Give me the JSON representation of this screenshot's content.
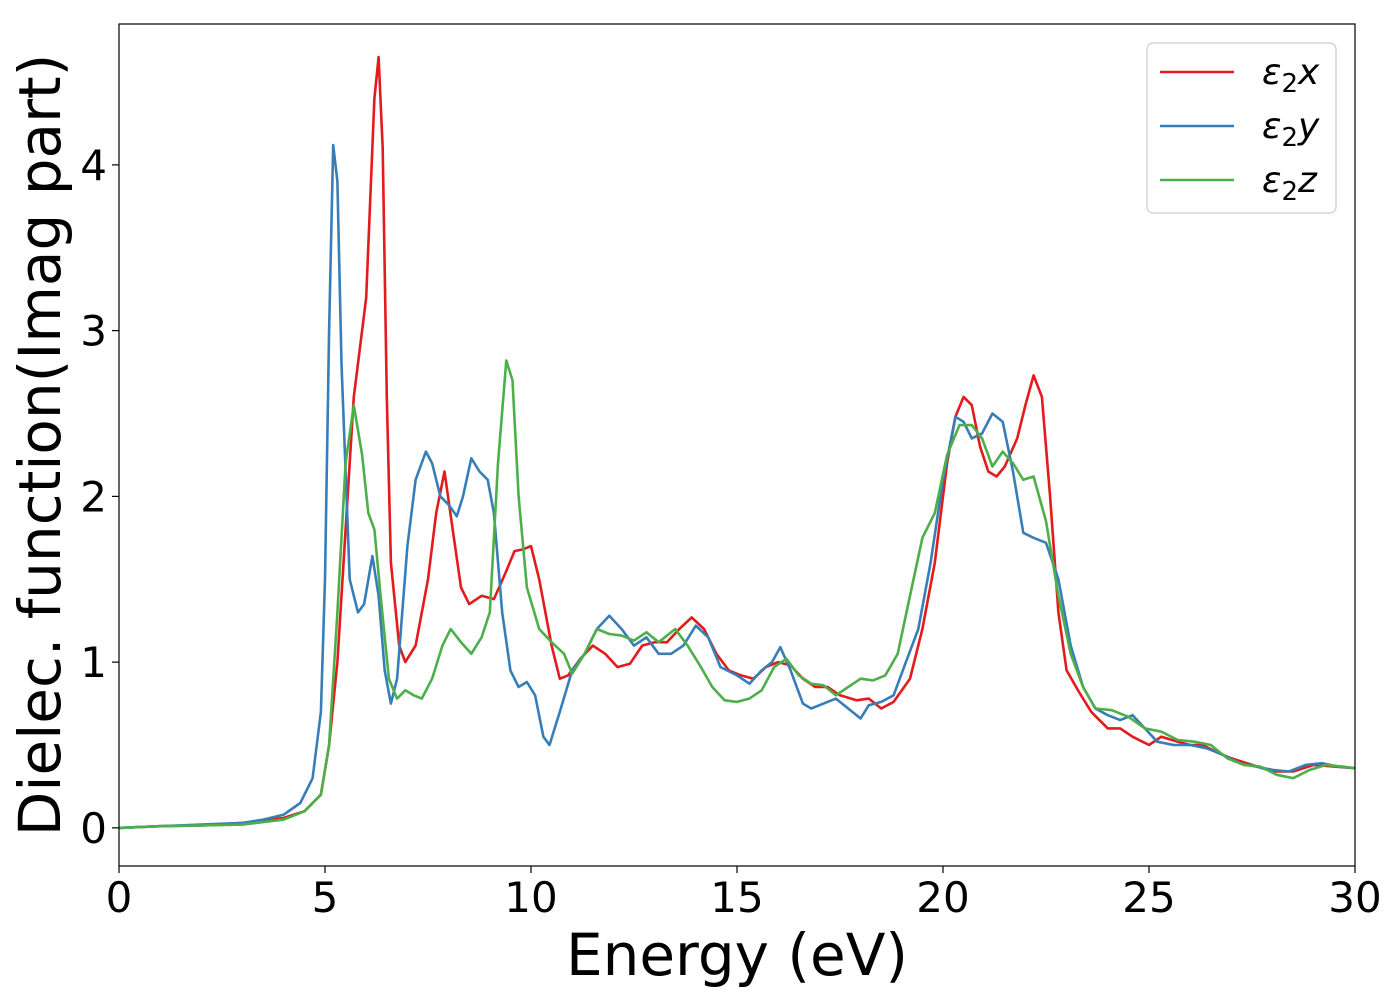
{
  "chart_data": {
    "type": "line",
    "title": "",
    "xlabel": "Energy (eV)",
    "ylabel": "Dielec. function(Imag part)",
    "xlim": [
      0,
      30
    ],
    "ylim": [
      -0.23,
      4.85
    ],
    "x_ticks": [
      0,
      5,
      10,
      15,
      20,
      25,
      30
    ],
    "y_ticks": [
      0,
      1,
      2,
      3,
      4
    ],
    "x_tick_labels": [
      "0",
      "5",
      "10",
      "15",
      "20",
      "25",
      "30"
    ],
    "y_tick_labels": [
      "0",
      "1",
      "2",
      "3",
      "4"
    ],
    "grid": false,
    "legend_position": "top-right",
    "series": [
      {
        "name": "ε2x",
        "legend_main": "ε",
        "legend_sub": "2",
        "legend_var": "x",
        "color": "#e41a1c",
        "points": [
          [
            0,
            0
          ],
          [
            1,
            0.01
          ],
          [
            2,
            0.015
          ],
          [
            3,
            0.03
          ],
          [
            4,
            0.06
          ],
          [
            4.5,
            0.1
          ],
          [
            4.9,
            0.2
          ],
          [
            5.1,
            0.5
          ],
          [
            5.3,
            1.0
          ],
          [
            5.5,
            1.8
          ],
          [
            5.7,
            2.6
          ],
          [
            5.9,
            3.0
          ],
          [
            6.0,
            3.2
          ],
          [
            6.1,
            3.8
          ],
          [
            6.2,
            4.4
          ],
          [
            6.3,
            4.65
          ],
          [
            6.4,
            4.1
          ],
          [
            6.5,
            2.6
          ],
          [
            6.6,
            1.6
          ],
          [
            6.8,
            1.1
          ],
          [
            6.95,
            1.0
          ],
          [
            7.2,
            1.1
          ],
          [
            7.5,
            1.5
          ],
          [
            7.7,
            1.9
          ],
          [
            7.9,
            2.15
          ],
          [
            8.1,
            1.8
          ],
          [
            8.3,
            1.45
          ],
          [
            8.5,
            1.35
          ],
          [
            8.8,
            1.4
          ],
          [
            9.1,
            1.38
          ],
          [
            9.4,
            1.55
          ],
          [
            9.6,
            1.67
          ],
          [
            9.8,
            1.68
          ],
          [
            10.0,
            1.7
          ],
          [
            10.2,
            1.5
          ],
          [
            10.5,
            1.1
          ],
          [
            10.7,
            0.9
          ],
          [
            10.9,
            0.92
          ],
          [
            11.2,
            1.02
          ],
          [
            11.5,
            1.1
          ],
          [
            11.8,
            1.05
          ],
          [
            12.1,
            0.97
          ],
          [
            12.4,
            0.99
          ],
          [
            12.7,
            1.1
          ],
          [
            13.0,
            1.12
          ],
          [
            13.3,
            1.12
          ],
          [
            13.6,
            1.2
          ],
          [
            13.9,
            1.27
          ],
          [
            14.2,
            1.2
          ],
          [
            14.5,
            1.05
          ],
          [
            14.8,
            0.95
          ],
          [
            15.1,
            0.92
          ],
          [
            15.4,
            0.9
          ],
          [
            15.7,
            0.97
          ],
          [
            16.0,
            1.0
          ],
          [
            16.3,
            0.98
          ],
          [
            16.6,
            0.9
          ],
          [
            16.9,
            0.85
          ],
          [
            17.2,
            0.85
          ],
          [
            17.5,
            0.8
          ],
          [
            17.9,
            0.77
          ],
          [
            18.2,
            0.78
          ],
          [
            18.5,
            0.72
          ],
          [
            18.8,
            0.76
          ],
          [
            19.2,
            0.9
          ],
          [
            19.5,
            1.2
          ],
          [
            19.8,
            1.6
          ],
          [
            20.1,
            2.2
          ],
          [
            20.3,
            2.48
          ],
          [
            20.5,
            2.6
          ],
          [
            20.7,
            2.55
          ],
          [
            20.9,
            2.3
          ],
          [
            21.1,
            2.15
          ],
          [
            21.3,
            2.12
          ],
          [
            21.5,
            2.18
          ],
          [
            21.8,
            2.35
          ],
          [
            22.0,
            2.55
          ],
          [
            22.2,
            2.73
          ],
          [
            22.4,
            2.6
          ],
          [
            22.6,
            2.0
          ],
          [
            22.8,
            1.3
          ],
          [
            23.0,
            0.95
          ],
          [
            23.3,
            0.82
          ],
          [
            23.6,
            0.7
          ],
          [
            24.0,
            0.6
          ],
          [
            24.3,
            0.6
          ],
          [
            24.6,
            0.55
          ],
          [
            25.0,
            0.5
          ],
          [
            25.3,
            0.55
          ],
          [
            25.7,
            0.52
          ],
          [
            26.0,
            0.5
          ],
          [
            26.3,
            0.5
          ],
          [
            26.7,
            0.45
          ],
          [
            27.0,
            0.42
          ],
          [
            27.5,
            0.38
          ],
          [
            28.0,
            0.34
          ],
          [
            28.5,
            0.34
          ],
          [
            29.0,
            0.38
          ],
          [
            29.5,
            0.37
          ],
          [
            30.0,
            0.36
          ]
        ]
      },
      {
        "name": "ε2y",
        "legend_main": "ε",
        "legend_sub": "2",
        "legend_var": "y",
        "color": "#377eb8",
        "points": [
          [
            0,
            0
          ],
          [
            1,
            0.01
          ],
          [
            2,
            0.02
          ],
          [
            3,
            0.03
          ],
          [
            3.5,
            0.05
          ],
          [
            4.0,
            0.08
          ],
          [
            4.4,
            0.15
          ],
          [
            4.7,
            0.3
          ],
          [
            4.9,
            0.7
          ],
          [
            5.0,
            1.5
          ],
          [
            5.1,
            3.0
          ],
          [
            5.2,
            4.12
          ],
          [
            5.3,
            3.9
          ],
          [
            5.4,
            2.8
          ],
          [
            5.6,
            1.5
          ],
          [
            5.8,
            1.3
          ],
          [
            5.95,
            1.35
          ],
          [
            6.15,
            1.64
          ],
          [
            6.3,
            1.4
          ],
          [
            6.45,
            0.95
          ],
          [
            6.6,
            0.75
          ],
          [
            6.75,
            0.9
          ],
          [
            7.0,
            1.7
          ],
          [
            7.2,
            2.1
          ],
          [
            7.45,
            2.27
          ],
          [
            7.6,
            2.2
          ],
          [
            7.8,
            2.0
          ],
          [
            8.0,
            1.95
          ],
          [
            8.2,
            1.88
          ],
          [
            8.35,
            2.0
          ],
          [
            8.55,
            2.23
          ],
          [
            8.75,
            2.15
          ],
          [
            8.95,
            2.1
          ],
          [
            9.1,
            1.9
          ],
          [
            9.3,
            1.3
          ],
          [
            9.5,
            0.95
          ],
          [
            9.7,
            0.85
          ],
          [
            9.9,
            0.88
          ],
          [
            10.1,
            0.8
          ],
          [
            10.3,
            0.55
          ],
          [
            10.45,
            0.5
          ],
          [
            10.7,
            0.7
          ],
          [
            11.0,
            0.95
          ],
          [
            11.3,
            1.05
          ],
          [
            11.6,
            1.2
          ],
          [
            11.9,
            1.28
          ],
          [
            12.2,
            1.2
          ],
          [
            12.5,
            1.1
          ],
          [
            12.8,
            1.15
          ],
          [
            13.1,
            1.05
          ],
          [
            13.4,
            1.05
          ],
          [
            13.7,
            1.1
          ],
          [
            14.0,
            1.22
          ],
          [
            14.3,
            1.15
          ],
          [
            14.6,
            0.97
          ],
          [
            15.0,
            0.92
          ],
          [
            15.3,
            0.87
          ],
          [
            15.6,
            0.95
          ],
          [
            15.85,
            1.0
          ],
          [
            16.05,
            1.09
          ],
          [
            16.3,
            0.95
          ],
          [
            16.6,
            0.75
          ],
          [
            16.8,
            0.72
          ],
          [
            17.1,
            0.75
          ],
          [
            17.4,
            0.78
          ],
          [
            17.7,
            0.72
          ],
          [
            18.0,
            0.66
          ],
          [
            18.2,
            0.74
          ],
          [
            18.5,
            0.76
          ],
          [
            18.8,
            0.8
          ],
          [
            19.1,
            1.0
          ],
          [
            19.4,
            1.2
          ],
          [
            19.7,
            1.6
          ],
          [
            20.0,
            2.1
          ],
          [
            20.3,
            2.48
          ],
          [
            20.5,
            2.45
          ],
          [
            20.7,
            2.35
          ],
          [
            20.95,
            2.38
          ],
          [
            21.2,
            2.5
          ],
          [
            21.45,
            2.45
          ],
          [
            21.7,
            2.15
          ],
          [
            21.95,
            1.78
          ],
          [
            22.2,
            1.75
          ],
          [
            22.5,
            1.72
          ],
          [
            22.8,
            1.5
          ],
          [
            23.1,
            1.1
          ],
          [
            23.4,
            0.85
          ],
          [
            23.7,
            0.72
          ],
          [
            24.0,
            0.68
          ],
          [
            24.3,
            0.65
          ],
          [
            24.6,
            0.68
          ],
          [
            24.9,
            0.6
          ],
          [
            25.2,
            0.52
          ],
          [
            25.6,
            0.5
          ],
          [
            26.0,
            0.5
          ],
          [
            26.4,
            0.48
          ],
          [
            26.8,
            0.44
          ],
          [
            27.2,
            0.39
          ],
          [
            27.6,
            0.37
          ],
          [
            28.0,
            0.35
          ],
          [
            28.4,
            0.34
          ],
          [
            28.8,
            0.38
          ],
          [
            29.2,
            0.39
          ],
          [
            29.6,
            0.37
          ],
          [
            30.0,
            0.36
          ]
        ]
      },
      {
        "name": "ε2z",
        "legend_main": "ε",
        "legend_sub": "2",
        "legend_var": "z",
        "color": "#4daf4a",
        "points": [
          [
            0,
            0
          ],
          [
            1,
            0.01
          ],
          [
            2,
            0.015
          ],
          [
            3,
            0.02
          ],
          [
            4,
            0.05
          ],
          [
            4.5,
            0.1
          ],
          [
            4.9,
            0.2
          ],
          [
            5.1,
            0.5
          ],
          [
            5.3,
            1.3
          ],
          [
            5.5,
            2.2
          ],
          [
            5.7,
            2.55
          ],
          [
            5.9,
            2.25
          ],
          [
            6.05,
            1.9
          ],
          [
            6.2,
            1.8
          ],
          [
            6.35,
            1.4
          ],
          [
            6.55,
            0.9
          ],
          [
            6.75,
            0.78
          ],
          [
            6.95,
            0.83
          ],
          [
            7.15,
            0.8
          ],
          [
            7.35,
            0.78
          ],
          [
            7.6,
            0.9
          ],
          [
            7.85,
            1.1
          ],
          [
            8.05,
            1.2
          ],
          [
            8.3,
            1.12
          ],
          [
            8.55,
            1.05
          ],
          [
            8.8,
            1.15
          ],
          [
            9.0,
            1.3
          ],
          [
            9.2,
            2.2
          ],
          [
            9.4,
            2.82
          ],
          [
            9.55,
            2.7
          ],
          [
            9.7,
            2.0
          ],
          [
            9.9,
            1.45
          ],
          [
            10.2,
            1.2
          ],
          [
            10.5,
            1.12
          ],
          [
            10.8,
            1.05
          ],
          [
            11.0,
            0.93
          ],
          [
            11.3,
            1.05
          ],
          [
            11.6,
            1.2
          ],
          [
            11.9,
            1.17
          ],
          [
            12.2,
            1.16
          ],
          [
            12.5,
            1.13
          ],
          [
            12.8,
            1.18
          ],
          [
            13.1,
            1.12
          ],
          [
            13.5,
            1.2
          ],
          [
            13.8,
            1.1
          ],
          [
            14.1,
            0.98
          ],
          [
            14.4,
            0.85
          ],
          [
            14.7,
            0.77
          ],
          [
            15.0,
            0.76
          ],
          [
            15.3,
            0.78
          ],
          [
            15.6,
            0.83
          ],
          [
            15.9,
            0.97
          ],
          [
            16.2,
            1.02
          ],
          [
            16.5,
            0.92
          ],
          [
            16.8,
            0.87
          ],
          [
            17.1,
            0.86
          ],
          [
            17.4,
            0.8
          ],
          [
            17.7,
            0.85
          ],
          [
            18.0,
            0.9
          ],
          [
            18.3,
            0.89
          ],
          [
            18.6,
            0.92
          ],
          [
            18.9,
            1.05
          ],
          [
            19.2,
            1.4
          ],
          [
            19.5,
            1.75
          ],
          [
            19.8,
            1.9
          ],
          [
            20.1,
            2.25
          ],
          [
            20.4,
            2.43
          ],
          [
            20.7,
            2.43
          ],
          [
            20.95,
            2.35
          ],
          [
            21.2,
            2.18
          ],
          [
            21.45,
            2.27
          ],
          [
            21.7,
            2.2
          ],
          [
            21.95,
            2.1
          ],
          [
            22.2,
            2.12
          ],
          [
            22.5,
            1.85
          ],
          [
            22.8,
            1.4
          ],
          [
            23.1,
            1.05
          ],
          [
            23.4,
            0.85
          ],
          [
            23.7,
            0.72
          ],
          [
            24.1,
            0.71
          ],
          [
            24.5,
            0.67
          ],
          [
            24.9,
            0.6
          ],
          [
            25.3,
            0.58
          ],
          [
            25.7,
            0.53
          ],
          [
            26.1,
            0.52
          ],
          [
            26.5,
            0.5
          ],
          [
            26.9,
            0.42
          ],
          [
            27.3,
            0.38
          ],
          [
            27.7,
            0.37
          ],
          [
            28.1,
            0.32
          ],
          [
            28.5,
            0.3
          ],
          [
            28.9,
            0.35
          ],
          [
            29.3,
            0.38
          ],
          [
            29.7,
            0.37
          ],
          [
            30.0,
            0.36
          ]
        ]
      }
    ]
  }
}
